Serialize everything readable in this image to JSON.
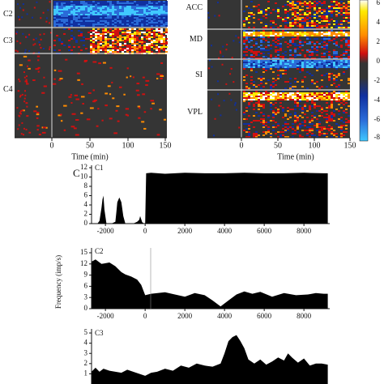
{
  "heatmaps": {
    "left": {
      "cluster_labels": [
        "C2",
        "C3",
        "C4"
      ],
      "x_ticks": [
        "0",
        "50",
        "100",
        "150"
      ],
      "xlabel": "Time (min)"
    },
    "right": {
      "region_labels": [
        "ACC",
        "MD",
        "SI",
        "VPL"
      ],
      "x_ticks": [
        "0",
        "50",
        "100",
        "150"
      ],
      "xlabel": "Time (min)"
    },
    "colorbar": {
      "ticks": [
        "6",
        "4",
        "2",
        "0",
        "-2",
        "-4",
        "-6",
        "-8"
      ],
      "colors": [
        "#ffffff",
        "#ffea00",
        "#ff8c00",
        "#d01010",
        "#353535",
        "#1030a0",
        "#2a6bd8",
        "#40c8ff"
      ]
    }
  },
  "panel_c": {
    "letter": "C",
    "ylabel": "Frequency (imp/s)",
    "fill_color": "#000000"
  },
  "chart_data": [
    {
      "type": "area",
      "label": "C1",
      "x_ticks": [
        -2000,
        0,
        2000,
        4000,
        6000,
        8000
      ],
      "y_ticks": [
        0,
        2,
        4,
        6,
        8,
        10,
        12
      ],
      "xlim": [
        -2700,
        9300
      ],
      "ylim": [
        0,
        12
      ],
      "grid": false,
      "x": [
        -2700,
        -2650,
        -2400,
        -2300,
        -2200,
        -2150,
        -2100,
        -2050,
        -1950,
        -1700,
        -1500,
        -1450,
        -1400,
        -1300,
        -1200,
        -1100,
        -1000,
        -600,
        -400,
        -300,
        -250,
        -150,
        -50,
        0,
        50,
        300,
        1000,
        2000,
        3000,
        4000,
        5000,
        6000,
        7000,
        8000,
        9000,
        9200
      ],
      "y": [
        0,
        0,
        0,
        0.6,
        3.4,
        5.2,
        6.0,
        3.0,
        0,
        0,
        0.4,
        2.4,
        4.6,
        5.6,
        4.6,
        1.6,
        0,
        0,
        0.4,
        0.8,
        1.6,
        0.3,
        0,
        0,
        10.8,
        10.9,
        10.7,
        10.9,
        10.8,
        10.8,
        10.9,
        10.8,
        10.8,
        10.9,
        10.8,
        10.8
      ]
    },
    {
      "type": "area",
      "label": "C2",
      "x_ticks": [
        -2000,
        0,
        2000,
        4000,
        6000,
        8000
      ],
      "y_ticks": [
        0,
        3,
        6,
        9,
        12,
        15
      ],
      "xlim": [
        -2700,
        9300
      ],
      "ylim": [
        0,
        15
      ],
      "grid": false,
      "x": [
        -2700,
        -2500,
        -2200,
        -1800,
        -1500,
        -1200,
        -1000,
        -700,
        -400,
        -200,
        0,
        300,
        1000,
        1500,
        2000,
        2500,
        3000,
        3400,
        3800,
        4200,
        4600,
        5000,
        5400,
        5800,
        6400,
        7000,
        7600,
        8200,
        8600,
        9000,
        9200
      ],
      "y": [
        12.6,
        13.2,
        12.0,
        12.4,
        11.4,
        9.8,
        9.2,
        8.6,
        7.8,
        6.4,
        3.6,
        4.0,
        4.4,
        3.8,
        3.2,
        4.2,
        3.6,
        2.2,
        0.6,
        2.2,
        3.8,
        4.6,
        4.0,
        4.5,
        3.2,
        4.2,
        3.6,
        3.8,
        4.2,
        4.0,
        4.0
      ]
    },
    {
      "type": "area",
      "label": "C3",
      "y_ticks": [
        1,
        2,
        3,
        4,
        5
      ],
      "xlim": [
        -2700,
        9300
      ],
      "ylim": [
        0,
        5.4
      ],
      "grid": false,
      "x": [
        -2700,
        -2500,
        -2300,
        -2100,
        -1800,
        -1500,
        -1200,
        -900,
        -600,
        -300,
        0,
        300,
        600,
        1000,
        1400,
        1800,
        2200,
        2600,
        3000,
        3400,
        3800,
        4000,
        4200,
        4400,
        4600,
        4800,
        5000,
        5200,
        5500,
        5800,
        6100,
        6400,
        6700,
        7000,
        7200,
        7400,
        7700,
        8000,
        8300,
        8600,
        8900,
        9200
      ],
      "y": [
        1.2,
        1.6,
        1.2,
        1.5,
        1.3,
        1.2,
        1.1,
        1.4,
        1.2,
        1.0,
        0.8,
        1.1,
        1.2,
        1.5,
        1.3,
        1.8,
        1.6,
        2.0,
        1.8,
        1.7,
        2.0,
        3.0,
        4.2,
        4.6,
        4.8,
        4.2,
        3.5,
        2.4,
        2.0,
        2.4,
        1.9,
        2.2,
        2.6,
        2.3,
        3.0,
        2.6,
        2.1,
        2.5,
        1.8,
        2.0,
        2.0,
        1.9
      ]
    }
  ]
}
